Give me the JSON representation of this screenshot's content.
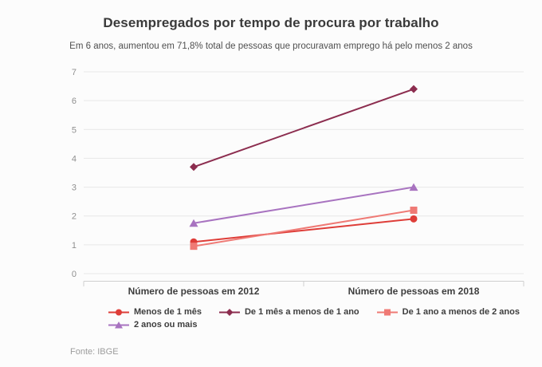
{
  "page": {
    "background_color": "#fcfcfc"
  },
  "header": {
    "title": "Desempregados por tempo de procura por trabalho",
    "subtitle": "Em 6 anos, aumentou em 71,8% total de pessoas que procuravam emprego há pelo menos 2 anos"
  },
  "footer": {
    "source": "Fonte: IBGE"
  },
  "chart_data": {
    "type": "line",
    "subtype": "slope-chart",
    "title": "Desempregados por tempo de procura por trabalho",
    "subtitle": "Em 6 anos, aumentou em 71,8% total de pessoas que procuravam emprego há pelo menos 2 anos",
    "categories": [
      "Número de pessoas em 2012",
      "Número de pessoas em 2018"
    ],
    "series": [
      {
        "name": "Menos de 1 mês",
        "values": [
          1.1,
          1.9
        ],
        "color": "#de3d38",
        "marker": "circle"
      },
      {
        "name": "De 1 mês a menos de 1 ano",
        "values": [
          3.7,
          6.4
        ],
        "color": "#8c2d4f",
        "marker": "diamond"
      },
      {
        "name": "De 1 ano a menos de 2 anos",
        "values": [
          0.95,
          2.2
        ],
        "color": "#ef7a75",
        "marker": "square"
      },
      {
        "name": "2 anos ou mais",
        "values": [
          1.75,
          3.0
        ],
        "color": "#a873c0",
        "marker": "triangle"
      }
    ],
    "xlabel": "",
    "ylabel": "",
    "ylim": [
      0,
      7
    ],
    "yticks": [
      0,
      1,
      2,
      3,
      4,
      5,
      6,
      7
    ],
    "grid": true,
    "legend_position": "bottom",
    "style": {
      "gridline_color": "#e7e7e7",
      "axis_line_color": "#cfcfcf",
      "ytick_label_color": "#8f8f8f",
      "category_label_color": "#3d3d3d"
    }
  }
}
